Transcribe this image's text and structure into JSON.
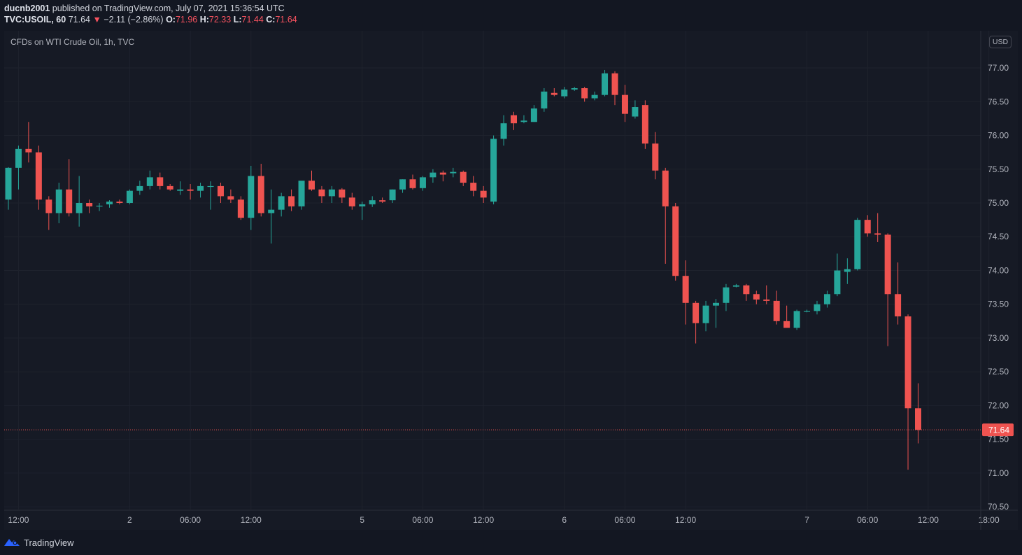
{
  "header": {
    "author": "ducnb2001",
    "published_text": " published on TradingView.com, July 07, 2021 15:36:54 UTC",
    "symbol": "TVC:USOIL, 60",
    "last": "71.64",
    "change_arrow": "▼",
    "change": "−2.11 (−2.86%)",
    "o_label": "O:",
    "o_value": "71.96",
    "h_label": "H:",
    "h_value": "72.33",
    "l_label": "L:",
    "l_value": "71.44",
    "c_label": "C:",
    "c_value": "71.64"
  },
  "legend": "CFDs on WTI Crude Oil, 1h, TVC",
  "currency": "USD",
  "footer": {
    "brand": "TradingView"
  },
  "colors": {
    "up": "#26a69a",
    "down": "#ef5350",
    "background": "#131722",
    "grid": "#1e222d",
    "text": "#b2b5be"
  },
  "chart_data": {
    "type": "candlestick",
    "title": "CFDs on WTI Crude Oil, 1h, TVC",
    "ylim": [
      70.46,
      77.55
    ],
    "y_ticks": [
      "77.00",
      "76.50",
      "76.00",
      "75.50",
      "75.00",
      "74.50",
      "74.00",
      "73.50",
      "73.00",
      "72.50",
      "72.00",
      "71.50",
      "71.00",
      "70.50"
    ],
    "x_ticks": [
      {
        "label": "12:00",
        "index": 1
      },
      {
        "label": "2",
        "index": 12
      },
      {
        "label": "06:00",
        "index": 18
      },
      {
        "label": "12:00",
        "index": 24
      },
      {
        "label": "5",
        "index": 35
      },
      {
        "label": "06:00",
        "index": 41
      },
      {
        "label": "12:00",
        "index": 47
      },
      {
        "label": "6",
        "index": 55
      },
      {
        "label": "06:00",
        "index": 61
      },
      {
        "label": "12:00",
        "index": 67
      },
      {
        "label": "7",
        "index": 79
      },
      {
        "label": "06:00",
        "index": 85
      },
      {
        "label": "12:00",
        "index": 91
      },
      {
        "label": "18:00",
        "index": 97
      }
    ],
    "last_price": "71.64",
    "candles": [
      [
        75.05,
        75.53,
        74.9,
        75.52
      ],
      [
        75.52,
        75.85,
        75.2,
        75.8
      ],
      [
        75.8,
        76.2,
        75.6,
        75.75
      ],
      [
        75.75,
        75.85,
        74.9,
        75.05
      ],
      [
        75.05,
        75.1,
        74.6,
        74.85
      ],
      [
        74.85,
        75.3,
        74.7,
        75.2
      ],
      [
        75.2,
        75.65,
        74.8,
        74.85
      ],
      [
        74.85,
        75.4,
        74.65,
        75.0
      ],
      [
        75.0,
        75.05,
        74.85,
        74.95
      ],
      [
        74.95,
        75.0,
        74.88,
        74.96
      ],
      [
        74.98,
        75.04,
        74.93,
        75.02
      ],
      [
        75.02,
        75.05,
        74.98,
        75.0
      ],
      [
        75.0,
        75.2,
        74.98,
        75.18
      ],
      [
        75.18,
        75.33,
        75.12,
        75.25
      ],
      [
        75.25,
        75.48,
        75.2,
        75.38
      ],
      [
        75.38,
        75.45,
        75.2,
        75.25
      ],
      [
        75.25,
        75.28,
        75.18,
        75.2
      ],
      [
        75.18,
        75.32,
        75.12,
        75.2
      ],
      [
        75.2,
        75.28,
        75.05,
        75.18
      ],
      [
        75.18,
        75.3,
        75.08,
        75.25
      ],
      [
        75.25,
        75.32,
        74.9,
        75.25
      ],
      [
        75.25,
        75.3,
        75.0,
        75.1
      ],
      [
        75.1,
        75.2,
        75.0,
        75.05
      ],
      [
        75.05,
        75.1,
        74.75,
        74.78
      ],
      [
        74.78,
        75.55,
        74.6,
        75.4
      ],
      [
        75.4,
        75.58,
        74.8,
        74.85
      ],
      [
        74.85,
        75.2,
        74.4,
        74.9
      ],
      [
        74.9,
        75.15,
        74.8,
        75.1
      ],
      [
        75.1,
        75.2,
        74.88,
        74.95
      ],
      [
        74.95,
        75.3,
        74.9,
        75.33
      ],
      [
        75.33,
        75.48,
        75.18,
        75.2
      ],
      [
        75.2,
        75.25,
        75.0,
        75.1
      ],
      [
        75.1,
        75.25,
        75.0,
        75.2
      ],
      [
        75.2,
        75.22,
        75.0,
        75.08
      ],
      [
        75.08,
        75.15,
        74.9,
        74.95
      ],
      [
        74.95,
        75.02,
        74.75,
        74.98
      ],
      [
        74.98,
        75.1,
        74.94,
        75.04
      ],
      [
        75.04,
        75.08,
        75.0,
        75.02
      ],
      [
        75.04,
        75.2,
        75.0,
        75.2
      ],
      [
        75.2,
        75.35,
        75.15,
        75.35
      ],
      [
        75.35,
        75.42,
        75.2,
        75.22
      ],
      [
        75.22,
        75.4,
        75.18,
        75.38
      ],
      [
        75.38,
        75.5,
        75.3,
        75.45
      ],
      [
        75.45,
        75.48,
        75.32,
        75.42
      ],
      [
        75.44,
        75.52,
        75.38,
        75.46
      ],
      [
        75.46,
        75.48,
        75.25,
        75.3
      ],
      [
        75.3,
        75.4,
        75.1,
        75.18
      ],
      [
        75.18,
        75.25,
        75.0,
        75.08
      ],
      [
        75.02,
        76.0,
        74.98,
        75.95
      ],
      [
        75.95,
        76.3,
        75.85,
        76.18
      ],
      [
        76.3,
        76.35,
        76.08,
        76.18
      ],
      [
        76.2,
        76.3,
        76.18,
        76.22
      ],
      [
        76.2,
        76.45,
        76.2,
        76.4
      ],
      [
        76.4,
        76.7,
        76.35,
        76.65
      ],
      [
        76.63,
        76.7,
        76.58,
        76.6
      ],
      [
        76.58,
        76.72,
        76.55,
        76.68
      ],
      [
        76.68,
        76.72,
        76.66,
        76.7
      ],
      [
        76.7,
        76.72,
        76.5,
        76.55
      ],
      [
        76.55,
        76.65,
        76.52,
        76.6
      ],
      [
        76.6,
        76.97,
        76.58,
        76.92
      ],
      [
        76.92,
        76.95,
        76.45,
        76.6
      ],
      [
        76.6,
        76.75,
        76.2,
        76.32
      ],
      [
        76.28,
        76.52,
        76.25,
        76.42
      ],
      [
        76.45,
        76.52,
        75.8,
        75.88
      ],
      [
        75.88,
        76.05,
        75.35,
        75.48
      ],
      [
        75.48,
        75.52,
        74.1,
        74.95
      ],
      [
        74.95,
        75.0,
        73.85,
        73.92
      ],
      [
        73.92,
        74.15,
        73.2,
        73.52
      ],
      [
        73.52,
        73.55,
        72.92,
        73.22
      ],
      [
        73.22,
        73.55,
        73.1,
        73.48
      ],
      [
        73.48,
        73.58,
        73.15,
        73.52
      ],
      [
        73.52,
        73.8,
        73.4,
        73.75
      ],
      [
        73.76,
        73.8,
        73.75,
        73.78
      ],
      [
        73.78,
        73.8,
        73.55,
        73.65
      ],
      [
        73.65,
        73.7,
        73.5,
        73.57
      ],
      [
        73.57,
        73.78,
        73.5,
        73.55
      ],
      [
        73.55,
        73.7,
        73.2,
        73.25
      ],
      [
        73.25,
        73.48,
        73.15,
        73.15
      ],
      [
        73.15,
        73.42,
        73.12,
        73.4
      ],
      [
        73.4,
        73.42,
        73.38,
        73.4
      ],
      [
        73.4,
        73.55,
        73.35,
        73.5
      ],
      [
        73.5,
        73.7,
        73.45,
        73.65
      ],
      [
        73.65,
        74.25,
        73.62,
        74.0
      ],
      [
        73.98,
        74.18,
        73.8,
        74.02
      ],
      [
        74.02,
        74.78,
        74.0,
        74.75
      ],
      [
        74.75,
        74.82,
        74.5,
        74.55
      ],
      [
        74.55,
        74.85,
        74.42,
        74.53
      ],
      [
        74.53,
        74.55,
        72.88,
        73.65
      ],
      [
        73.65,
        74.12,
        73.2,
        73.32
      ],
      [
        73.32,
        73.35,
        71.05,
        71.96
      ],
      [
        71.96,
        72.33,
        71.44,
        71.64
      ]
    ]
  }
}
